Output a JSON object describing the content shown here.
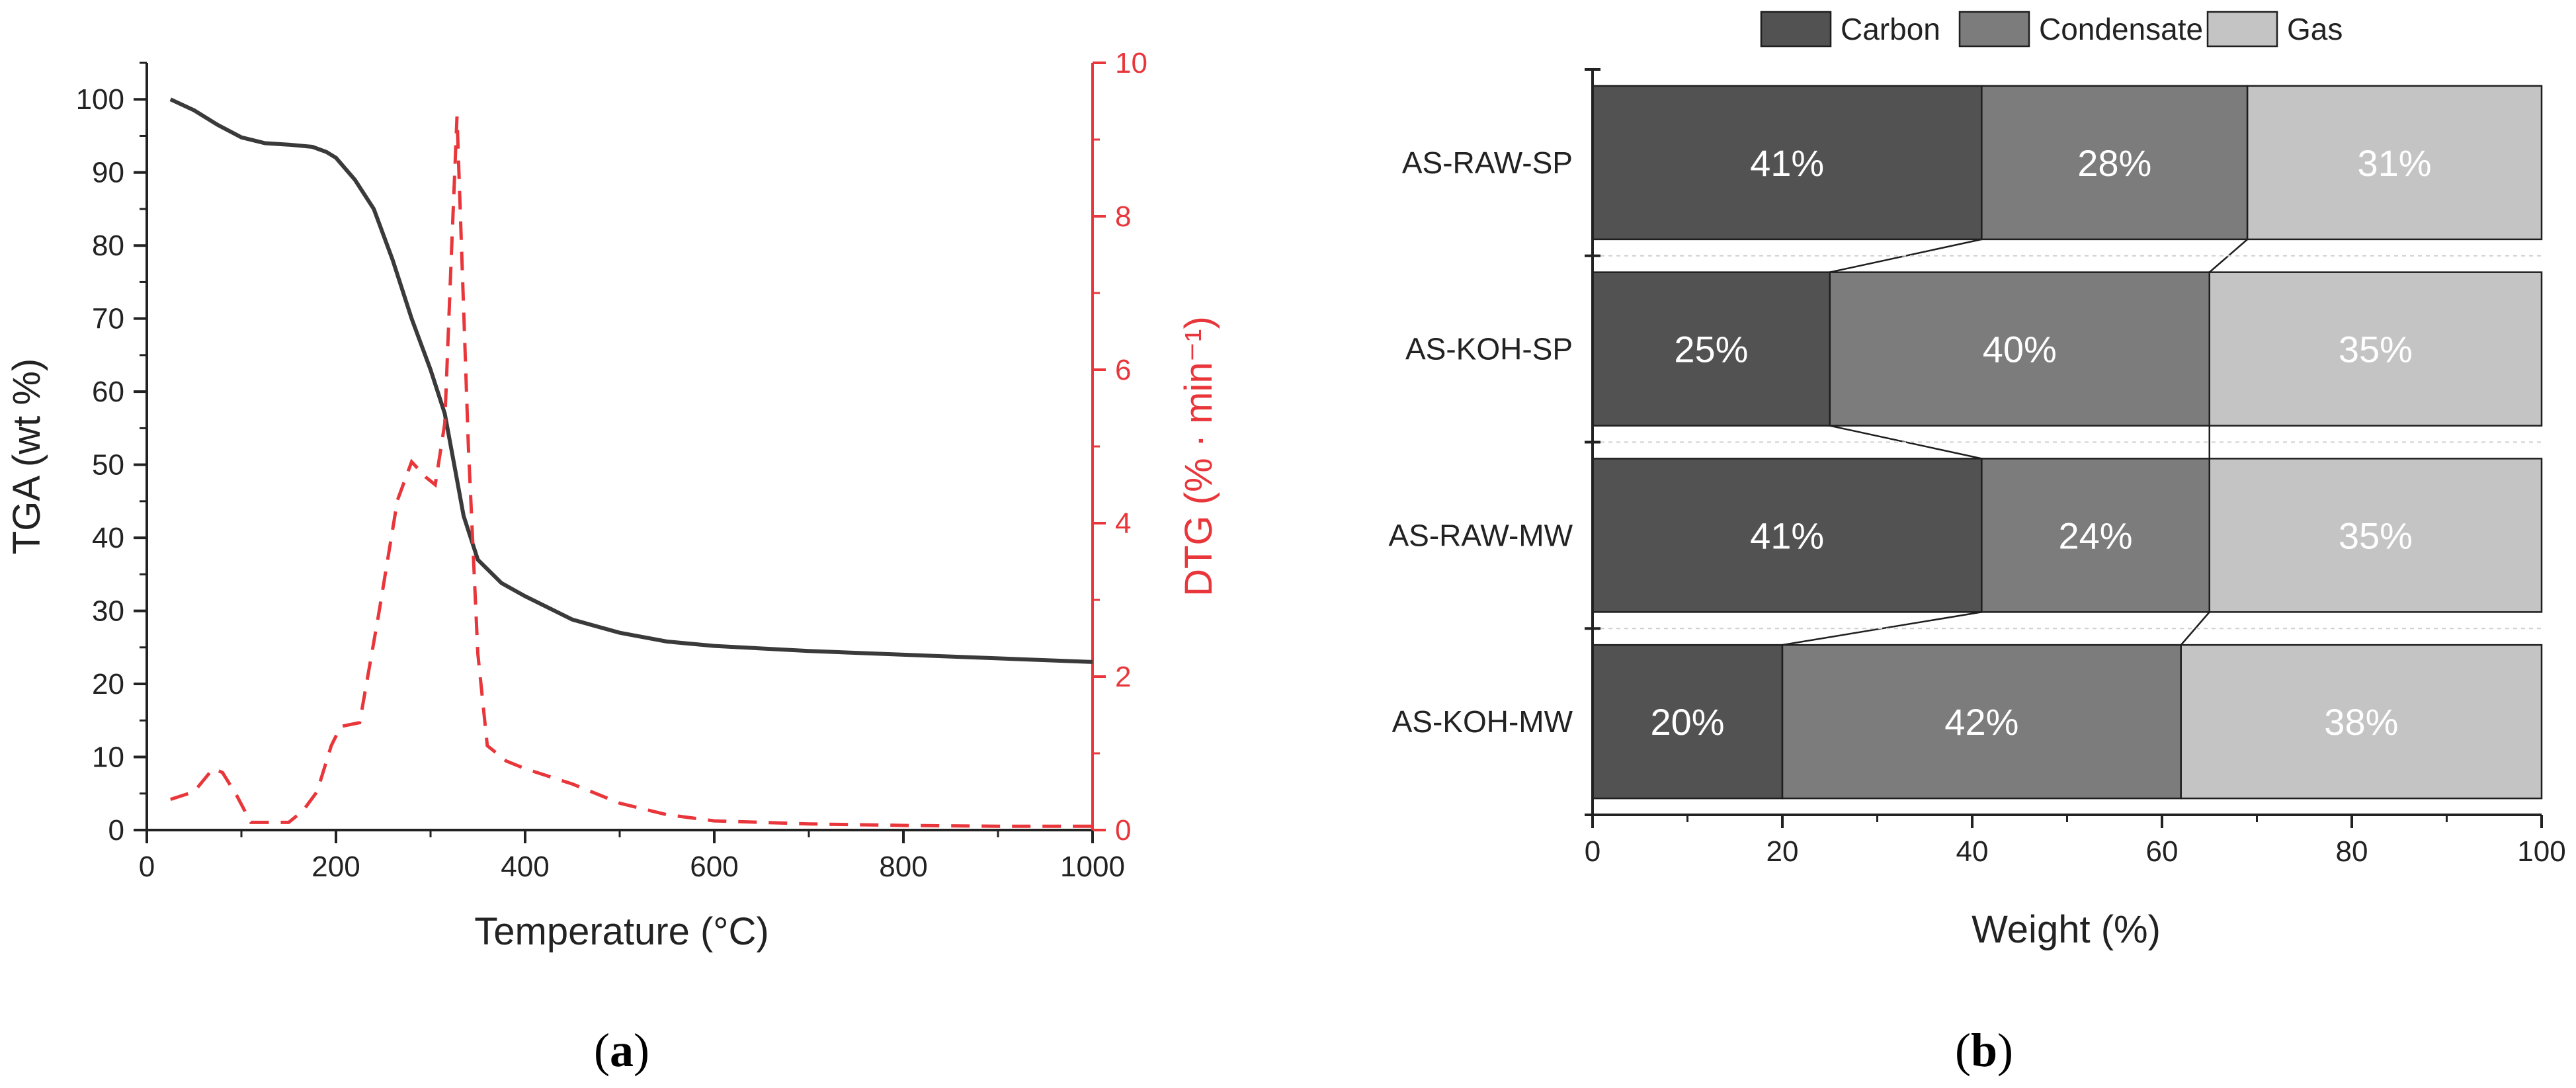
{
  "panels": {
    "a_open": "(",
    "a_letter": "a",
    "a_close": ")",
    "b_open": "(",
    "b_letter": "b",
    "b_close": ")"
  },
  "chart_data": [
    {
      "type": "line",
      "xlabel": "Temperature (°C)",
      "ylabel": "TGA (wt %)",
      "y2label": "DTG (% · min⁻¹)",
      "xlim": [
        0,
        1000
      ],
      "ylim": [
        0,
        105
      ],
      "y2lim": [
        0,
        10
      ],
      "xticks": [
        0,
        200,
        400,
        600,
        800,
        1000
      ],
      "yticks": [
        0,
        10,
        20,
        30,
        40,
        50,
        60,
        70,
        80,
        90,
        100
      ],
      "y2ticks": [
        0,
        2,
        4,
        6,
        8,
        10
      ],
      "grid": false,
      "colors": {
        "tga": "#3a3a3a",
        "dtg": "#e8363b"
      },
      "series": [
        {
          "axis": "left",
          "style": "solid",
          "points": [
            [
              25,
              100
            ],
            [
              50,
              98.5
            ],
            [
              75,
              96.5
            ],
            [
              100,
              94.8
            ],
            [
              125,
              94
            ],
            [
              150,
              93.8
            ],
            [
              175,
              93.5
            ],
            [
              190,
              92.8
            ],
            [
              200,
              92
            ],
            [
              220,
              89
            ],
            [
              240,
              85
            ],
            [
              260,
              78
            ],
            [
              280,
              70
            ],
            [
              300,
              63
            ],
            [
              315,
              57
            ],
            [
              325,
              50
            ],
            [
              335,
              43
            ],
            [
              350,
              37
            ],
            [
              375,
              33.8
            ],
            [
              400,
              32
            ],
            [
              450,
              28.8
            ],
            [
              500,
              27
            ],
            [
              550,
              25.8
            ],
            [
              600,
              25.2
            ],
            [
              700,
              24.5
            ],
            [
              800,
              24
            ],
            [
              900,
              23.5
            ],
            [
              1000,
              23
            ]
          ]
        },
        {
          "axis": "right",
          "style": "dashed",
          "points": [
            [
              25,
              0.4
            ],
            [
              50,
              0.5
            ],
            [
              70,
              0.8
            ],
            [
              80,
              0.75
            ],
            [
              95,
              0.45
            ],
            [
              110,
              0.1
            ],
            [
              130,
              0.1
            ],
            [
              150,
              0.1
            ],
            [
              165,
              0.25
            ],
            [
              180,
              0.5
            ],
            [
              195,
              1.1
            ],
            [
              205,
              1.35
            ],
            [
              225,
              1.4
            ],
            [
              245,
              2.8
            ],
            [
              265,
              4.3
            ],
            [
              280,
              4.8
            ],
            [
              295,
              4.6
            ],
            [
              305,
              4.5
            ],
            [
              315,
              5.3
            ],
            [
              322,
              7.5
            ],
            [
              328,
              9.3
            ],
            [
              333,
              7.5
            ],
            [
              340,
              5.0
            ],
            [
              350,
              2.3
            ],
            [
              360,
              1.1
            ],
            [
              380,
              0.9
            ],
            [
              400,
              0.8
            ],
            [
              450,
              0.6
            ],
            [
              500,
              0.35
            ],
            [
              550,
              0.2
            ],
            [
              600,
              0.12
            ],
            [
              700,
              0.08
            ],
            [
              800,
              0.06
            ],
            [
              900,
              0.05
            ],
            [
              1000,
              0.05
            ]
          ]
        }
      ]
    },
    {
      "type": "bar",
      "orientation": "horizontal",
      "stacked": true,
      "xlabel": "Weight (%)",
      "xlim": [
        0,
        100
      ],
      "xticks": [
        0,
        20,
        40,
        60,
        80,
        100
      ],
      "legend": "top",
      "categories": [
        "AS-RAW-SP",
        "AS-KOH-SP",
        "AS-RAW-MW",
        "AS-KOH-MW"
      ],
      "series": [
        {
          "name": "Carbon",
          "color": "#525252",
          "values": [
            41,
            25,
            41,
            20
          ],
          "labels": [
            "41%",
            "25%",
            "41%",
            "20%"
          ]
        },
        {
          "name": "Condensate",
          "color": "#7c7c7c",
          "values": [
            28,
            40,
            24,
            42
          ],
          "labels": [
            "28%",
            "40%",
            "24%",
            "42%"
          ]
        },
        {
          "name": "Gas",
          "color": "#c4c4c4",
          "values": [
            31,
            35,
            35,
            38
          ],
          "labels": [
            "31%",
            "35%",
            "35%",
            "38%"
          ]
        }
      ]
    }
  ]
}
